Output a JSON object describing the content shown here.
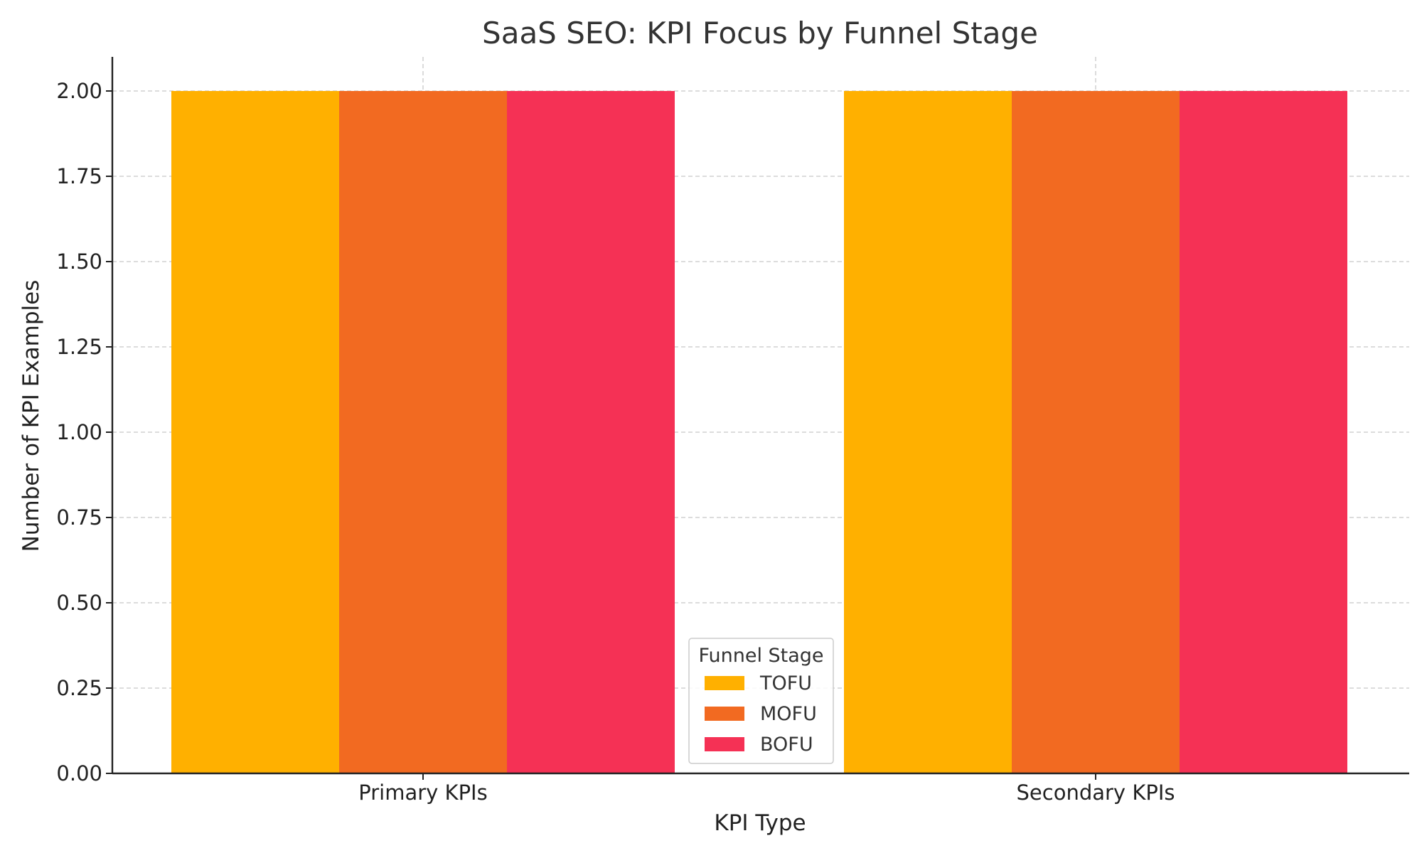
{
  "chart_data": {
    "type": "bar",
    "title": "SaaS SEO: KPI Focus by Funnel Stage",
    "xlabel": "KPI Type",
    "ylabel": "Number of KPI Examples",
    "categories": [
      "Primary KPIs",
      "Secondary KPIs"
    ],
    "series": [
      {
        "name": "TOFU",
        "values": [
          2,
          2
        ],
        "color": "#FFB000"
      },
      {
        "name": "MOFU",
        "values": [
          2,
          2
        ],
        "color": "#F26A21"
      },
      {
        "name": "BOFU",
        "values": [
          2,
          2
        ],
        "color": "#F53155"
      }
    ],
    "ylim": [
      0,
      2.1
    ],
    "yticks": [
      "0.00",
      "0.25",
      "0.50",
      "0.75",
      "1.00",
      "1.25",
      "1.50",
      "1.75",
      "2.00"
    ],
    "grid": true,
    "legend": {
      "title": "Funnel Stage",
      "placement": "lower-center"
    }
  }
}
